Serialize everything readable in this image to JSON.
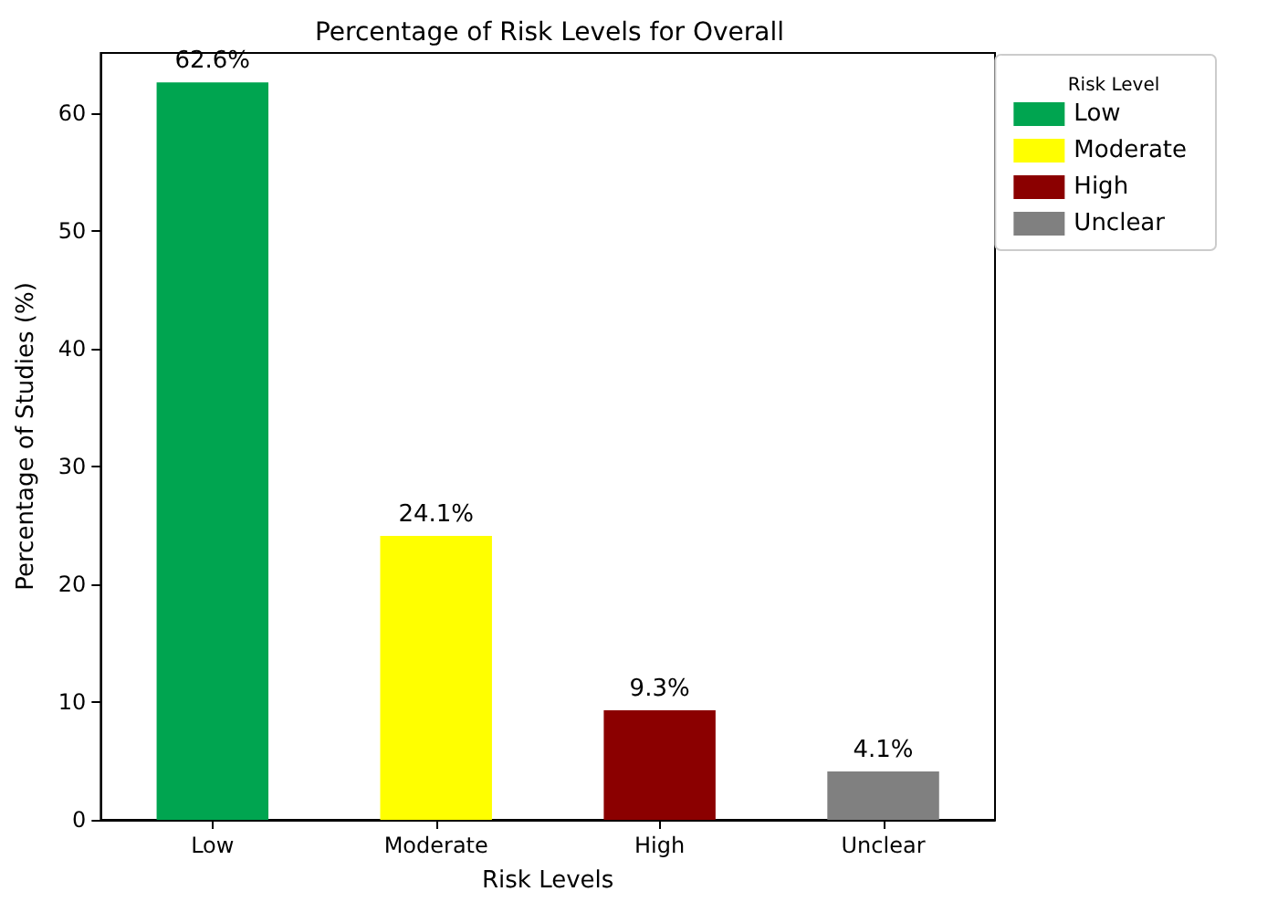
{
  "chart_data": {
    "type": "bar",
    "title": "Percentage of Risk Levels for Overall",
    "xlabel": "Risk Levels",
    "ylabel": "Percentage of Studies (%)",
    "legend_title": "Risk Level",
    "categories": [
      "Low",
      "Moderate",
      "High",
      "Unclear"
    ],
    "series": [
      {
        "name": "Low",
        "color": "#00a550",
        "values": [
          62.6,
          null,
          null,
          null
        ],
        "value_labels": [
          "62.6%",
          null,
          null,
          null
        ]
      },
      {
        "name": "Moderate",
        "color": "#ffff00",
        "values": [
          null,
          24.1,
          null,
          null
        ],
        "value_labels": [
          null,
          "24.1%",
          null,
          null
        ]
      },
      {
        "name": "High",
        "color": "#8b0000",
        "values": [
          null,
          null,
          9.3,
          null
        ],
        "value_labels": [
          null,
          null,
          "9.3%",
          null
        ]
      },
      {
        "name": "Unclear",
        "color": "#808080",
        "values": [
          null,
          null,
          null,
          4.1
        ],
        "value_labels": [
          null,
          null,
          null,
          "4.1%"
        ]
      }
    ],
    "ylim": [
      0,
      65.1
    ],
    "yticks": [
      0,
      10,
      20,
      30,
      40,
      50,
      60
    ],
    "grid": false,
    "legend": "right"
  }
}
